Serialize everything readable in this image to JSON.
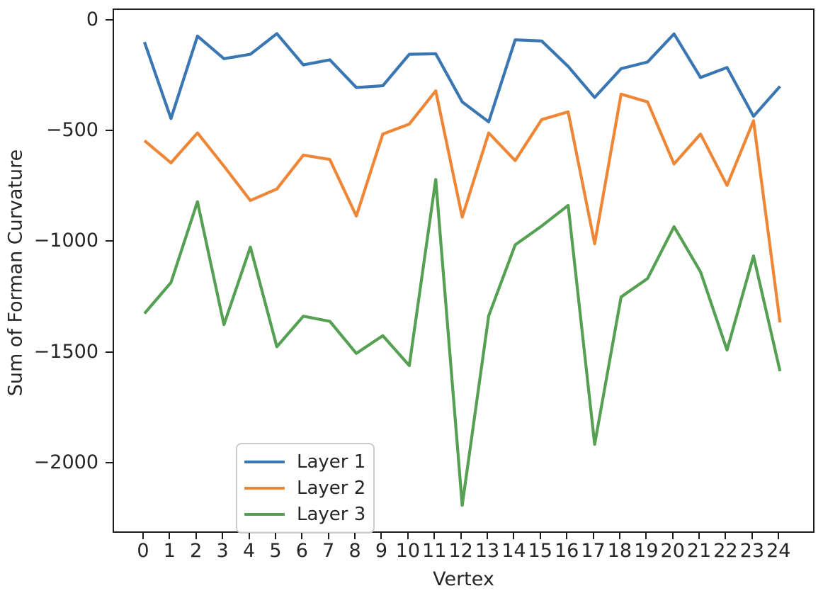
{
  "figure": {
    "background": "#ffffff",
    "spine_color": "#1c1c1c",
    "text_color": "#262626"
  },
  "chart_data": {
    "type": "line",
    "title": "",
    "xlabel": "Vertex",
    "ylabel": "Sum of Forman Curvature",
    "x": [
      0,
      1,
      2,
      3,
      4,
      5,
      6,
      7,
      8,
      9,
      10,
      11,
      12,
      13,
      14,
      15,
      16,
      17,
      18,
      19,
      20,
      21,
      22,
      23,
      24
    ],
    "series": [
      {
        "name": "Layer 1",
        "color": "#3a76b2",
        "values": [
          -95,
          -440,
          -68,
          -170,
          -150,
          -57,
          -198,
          -175,
          -300,
          -292,
          -150,
          -148,
          -365,
          -455,
          -85,
          -90,
          -205,
          -345,
          -215,
          -185,
          -58,
          -255,
          -210,
          -430,
          -295
        ]
      },
      {
        "name": "Layer 2",
        "color": "#ef8636",
        "values": [
          -540,
          -640,
          -505,
          -655,
          -810,
          -758,
          -605,
          -625,
          -880,
          -510,
          -465,
          -315,
          -885,
          -505,
          -630,
          -445,
          -410,
          -1005,
          -330,
          -365,
          -645,
          -510,
          -742,
          -450,
          -1360
        ]
      },
      {
        "name": "Layer 3",
        "color": "#55a052",
        "values": [
          -1320,
          -1180,
          -815,
          -1370,
          -1020,
          -1470,
          -1332,
          -1355,
          -1500,
          -1420,
          -1555,
          -715,
          -2185,
          -1330,
          -1010,
          -925,
          -832,
          -1910,
          -1245,
          -1162,
          -928,
          -1132,
          -1485,
          -1060,
          -1580
        ]
      }
    ],
    "xlim": [
      -1.15,
      25.25
    ],
    "ylim": [
      -2303,
      50
    ],
    "xticks": {
      "values": [
        0,
        1,
        2,
        3,
        4,
        5,
        6,
        7,
        8,
        9,
        10,
        11,
        12,
        13,
        14,
        15,
        16,
        17,
        18,
        19,
        20,
        21,
        22,
        23,
        24
      ],
      "labels": [
        "0",
        "1",
        "2",
        "3",
        "4",
        "5",
        "6",
        "7",
        "8",
        "9",
        "10",
        "11",
        "12",
        "13",
        "14",
        "15",
        "16",
        "17",
        "18",
        "19",
        "20",
        "21",
        "22",
        "23",
        "24"
      ]
    },
    "yticks": {
      "values": [
        0,
        -500,
        -1000,
        -1500,
        -2000
      ],
      "labels": [
        "0",
        "−500",
        "−1000",
        "−1500",
        "−2000"
      ]
    },
    "grid": false,
    "legend": {
      "position": "lower left",
      "entries": [
        "Layer 1",
        "Layer 2",
        "Layer 3"
      ]
    }
  }
}
